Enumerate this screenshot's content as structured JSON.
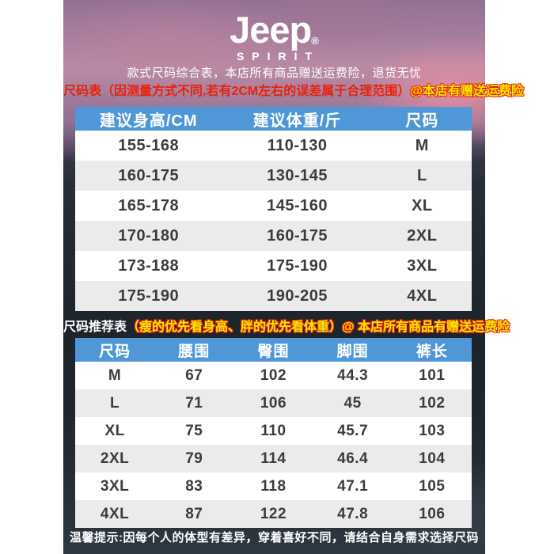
{
  "brand": {
    "logo": "Jeep",
    "registered": "®",
    "sub": "SPIRIT"
  },
  "header": {
    "tagline": "款式尺码综合表，本店所有商品赠送运费险，退货无忧"
  },
  "notes": {
    "note1_red": "尺码表（因测量方式不同,若有2CM左右的误差属于合理范围）",
    "note1_yellow": "@本店有赠送运费险",
    "note2_white": "尺码推荐表",
    "note2_yellow": "（瘦的优先看身高、胖的优先看体重）@ 本店所有商品有赠送运费险",
    "footer": "温馨提示:因每个人的体型有差异，穿着喜好不同，请结合自身需求选择尺码"
  },
  "size_table": {
    "columns": [
      "建议身高/CM",
      "建议体重/斤",
      "尺码"
    ],
    "rows": [
      [
        "155-168",
        "110-130",
        "M"
      ],
      [
        "160-175",
        "130-145",
        "L"
      ],
      [
        "165-178",
        "145-160",
        "XL"
      ],
      [
        "170-180",
        "160-175",
        "2XL"
      ],
      [
        "173-188",
        "175-190",
        "3XL"
      ],
      [
        "175-190",
        "190-205",
        "4XL"
      ]
    ]
  },
  "measure_table": {
    "columns": [
      "尺码",
      "腰围",
      "臀围",
      "脚围",
      "裤长"
    ],
    "rows": [
      [
        "M",
        "67",
        "102",
        "44.3",
        "101"
      ],
      [
        "L",
        "71",
        "106",
        "45",
        "102"
      ],
      [
        "XL",
        "75",
        "110",
        "45.7",
        "103"
      ],
      [
        "2XL",
        "79",
        "114",
        "46.4",
        "104"
      ],
      [
        "3XL",
        "83",
        "118",
        "47.1",
        "105"
      ],
      [
        "4XL",
        "87",
        "122",
        "47.8",
        "106"
      ]
    ]
  },
  "colors": {
    "header_blue": "#4F97D7",
    "row_alt": "#EBEBEB",
    "note_red": "#E8220A",
    "note_yellow": "#F2EA00"
  }
}
